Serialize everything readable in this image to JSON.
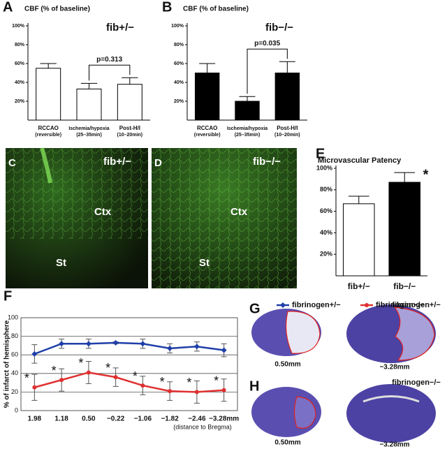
{
  "chart_data": [
    {
      "type": "bar",
      "letter": "A",
      "title": "CBF (% of baseline)",
      "annotation": "fib+/−",
      "categories": [
        "RCCAO",
        "Ischemia/hypoxia",
        "Post-H/I"
      ],
      "category_sublabels": [
        "(reversible)",
        "(25–35min)",
        "(10–20min)"
      ],
      "values": [
        55,
        33,
        38
      ],
      "errors": [
        5,
        6,
        7
      ],
      "color": "#ffffff",
      "ylim": [
        0,
        100
      ],
      "yticks": [
        {
          "value": 20,
          "label": "20%"
        },
        {
          "value": 40,
          "label": "40%"
        },
        {
          "value": 60,
          "label": "60%"
        },
        {
          "value": 80,
          "label": "80%"
        },
        {
          "value": 100,
          "label": "100%"
        }
      ],
      "comparison": {
        "label": "p=0.313",
        "between": [
          1,
          2
        ]
      }
    },
    {
      "type": "bar",
      "letter": "B",
      "title": "CBF (% of baseline)",
      "annotation": "fib−/−",
      "categories": [
        "RCCAO",
        "Ischemia/hypoxia",
        "Post-H/I"
      ],
      "category_sublabels": [
        "(reversible)",
        "(25–35min)",
        "(10–20min)"
      ],
      "values": [
        50,
        20,
        50
      ],
      "errors": [
        10,
        5,
        12
      ],
      "color": "#000000",
      "ylim": [
        0,
        100
      ],
      "yticks": [
        {
          "value": 20,
          "label": "20%"
        },
        {
          "value": 40,
          "label": "40%"
        },
        {
          "value": 60,
          "label": "60%"
        },
        {
          "value": 80,
          "label": "80%"
        },
        {
          "value": 100,
          "label": "100%"
        }
      ],
      "comparison": {
        "label": "p=0.035",
        "between": [
          1,
          2
        ]
      }
    },
    {
      "type": "bar",
      "letter": "E",
      "title": "Microvascular Patency",
      "annotation": "*",
      "categories": [
        "fib+/−",
        "fib−/−"
      ],
      "colors": [
        "#ffffff",
        "#000000"
      ],
      "values": [
        67,
        87
      ],
      "errors": [
        7,
        9
      ],
      "ylim": [
        0,
        100
      ],
      "yticks": [
        {
          "value": 20,
          "label": "20%"
        },
        {
          "value": 40,
          "label": "40%"
        },
        {
          "value": 60,
          "label": "60%"
        },
        {
          "value": 80,
          "label": "80%"
        },
        {
          "value": 100,
          "label": "100%"
        }
      ]
    },
    {
      "type": "line",
      "letter": "F",
      "y_label": "% of infarct of hemisphere",
      "x_label": "(distance to Bregma)",
      "categories": [
        "1.98",
        "1.18",
        "0.50",
        "−0.22",
        "−1.06",
        "−1.82",
        "−2.46",
        "−3.28mm"
      ],
      "series": [
        {
          "name": "fibrinogen+/−",
          "color": "#1f3fa8",
          "values": [
            61,
            72,
            72,
            73,
            72,
            67,
            69,
            65
          ],
          "errors": [
            10,
            5,
            5,
            1,
            5,
            5,
            5,
            7
          ]
        },
        {
          "name": "fibrinogen−/−",
          "color": "#e03030",
          "values": [
            25,
            33,
            41,
            36,
            27,
            21,
            20,
            22
          ],
          "errors": [
            14,
            12,
            12,
            10,
            10,
            10,
            12,
            12
          ],
          "point_labels": [
            "*",
            "*",
            "*",
            "*",
            "*",
            "*",
            "*",
            "*"
          ]
        }
      ],
      "ylim": [
        0,
        100
      ],
      "yticks": [
        0,
        20,
        40,
        60,
        80,
        100
      ],
      "grid": true
    }
  ],
  "images": [
    {
      "letter": "C",
      "labels": [
        "fib+/−",
        "Ctx",
        "St"
      ]
    },
    {
      "letter": "D",
      "labels": [
        "fib−/−",
        "Ctx",
        "St"
      ]
    },
    {
      "letter": "G",
      "labels": [
        "fibrinogen+/−",
        "0.50mm",
        "−3.28mm"
      ]
    },
    {
      "letter": "H",
      "labels": [
        "fibrinogen−/−",
        "0.50mm",
        "−3.28mm"
      ]
    }
  ]
}
